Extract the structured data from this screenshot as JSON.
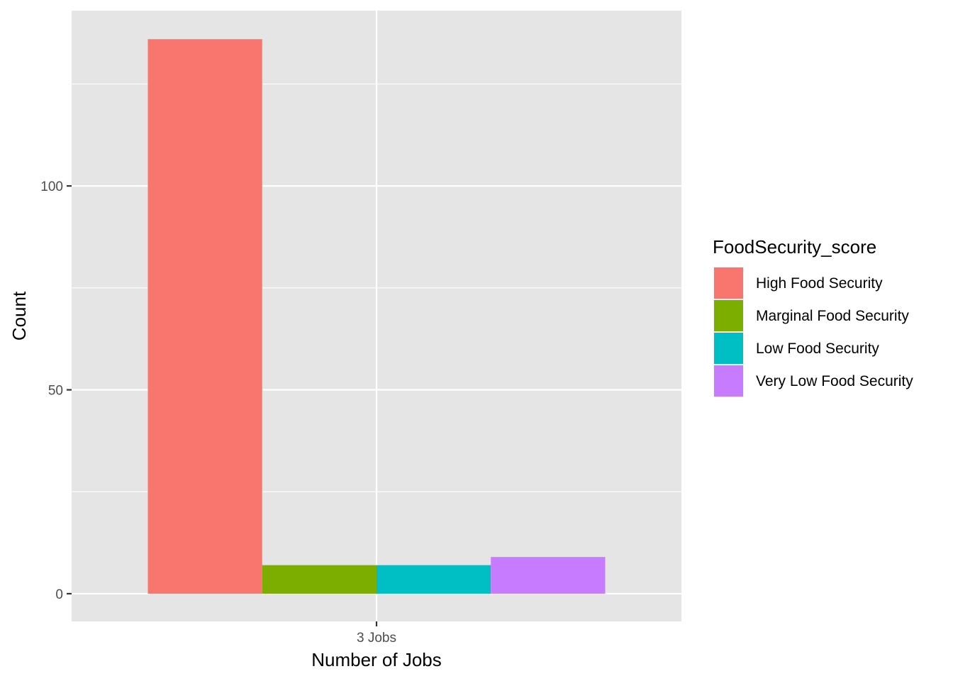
{
  "chart_data": {
    "type": "bar",
    "categories": [
      "3 Jobs"
    ],
    "series": [
      {
        "name": "High Food Security",
        "values": [
          136
        ],
        "color": "#F8766D"
      },
      {
        "name": "Marginal Food Security",
        "values": [
          7
        ],
        "color": "#7CAE00"
      },
      {
        "name": "Low Food Security",
        "values": [
          7
        ],
        "color": "#00BFC4"
      },
      {
        "name": "Very Low Food Security",
        "values": [
          9
        ],
        "color": "#C77CFF"
      }
    ],
    "xlabel": "Number of Jobs",
    "ylabel": "Count",
    "ylim": [
      -6.8,
      143
    ],
    "yticks": [
      0,
      50,
      100
    ],
    "y_minor_ticks": [
      25,
      75,
      125
    ],
    "legend": {
      "title": "FoodSecurity_score",
      "position": "right"
    },
    "grid": true,
    "panel_background": "#E5E5E5"
  }
}
